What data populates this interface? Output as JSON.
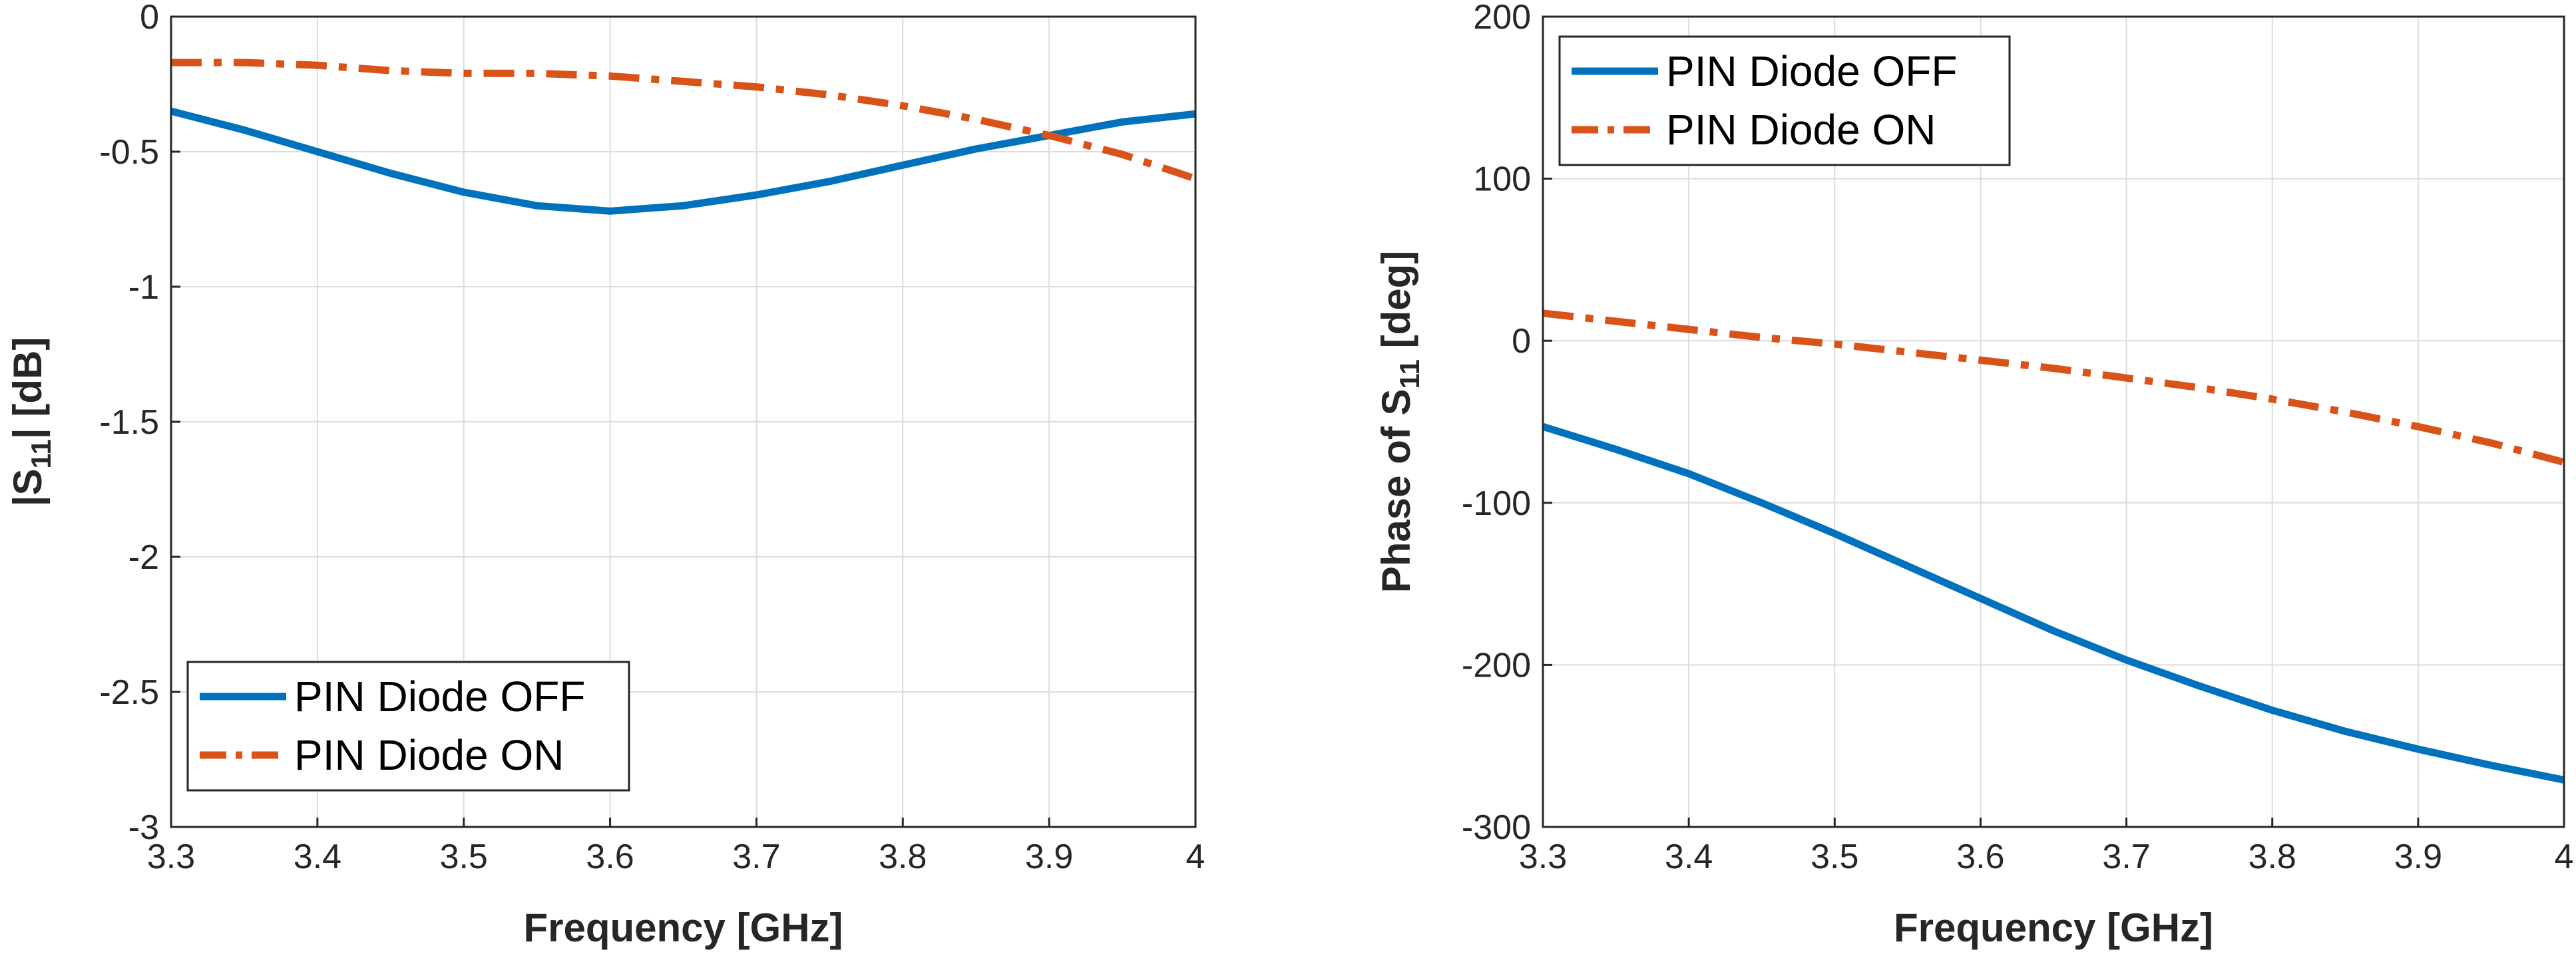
{
  "colors": {
    "off": "#0072BD",
    "on": "#D95319",
    "axis": "#262626",
    "grid": "#dcdcdc"
  },
  "chart_data": [
    {
      "type": "line",
      "xlabel": "Frequency [GHz]",
      "ylabel_main": "|S",
      "ylabel_sub": "11",
      "ylabel_tail": "| [dB]",
      "xlim": [
        3.3,
        4.0
      ],
      "ylim": [
        -3,
        0
      ],
      "xticks": [
        "3.3",
        "3.4",
        "3.5",
        "3.6",
        "3.7",
        "3.8",
        "3.9",
        "4"
      ],
      "yticks": [
        "0",
        "-0.5",
        "-1",
        "-1.5",
        "-2",
        "-2.5",
        "-3"
      ],
      "grid": true,
      "legend_position": "bottom-left",
      "series": [
        {
          "name": "PIN Diode OFF",
          "style": "solid",
          "x": [
            3.3,
            3.35,
            3.4,
            3.45,
            3.5,
            3.55,
            3.6,
            3.65,
            3.7,
            3.75,
            3.8,
            3.85,
            3.9,
            3.95,
            4.0
          ],
          "y": [
            -0.35,
            -0.42,
            -0.5,
            -0.58,
            -0.65,
            -0.7,
            -0.72,
            -0.7,
            -0.66,
            -0.61,
            -0.55,
            -0.49,
            -0.44,
            -0.39,
            -0.36
          ]
        },
        {
          "name": "PIN Diode ON",
          "style": "dashdot",
          "x": [
            3.3,
            3.35,
            3.4,
            3.45,
            3.5,
            3.55,
            3.6,
            3.65,
            3.7,
            3.75,
            3.8,
            3.85,
            3.9,
            3.95,
            4.0
          ],
          "y": [
            -0.17,
            -0.17,
            -0.18,
            -0.2,
            -0.21,
            -0.21,
            -0.22,
            -0.24,
            -0.26,
            -0.29,
            -0.33,
            -0.38,
            -0.44,
            -0.51,
            -0.6
          ]
        }
      ]
    },
    {
      "type": "line",
      "xlabel": "Frequency [GHz]",
      "ylabel_main": "Phase of S",
      "ylabel_sub": "11",
      "ylabel_tail": " [deg]",
      "xlim": [
        3.3,
        4.0
      ],
      "ylim": [
        -300,
        200
      ],
      "xticks": [
        "3.3",
        "3.4",
        "3.5",
        "3.6",
        "3.7",
        "3.8",
        "3.9",
        "4"
      ],
      "yticks": [
        "200",
        "100",
        "0",
        "-100",
        "-200",
        "-300"
      ],
      "grid": true,
      "legend_position": "top-left",
      "series": [
        {
          "name": "PIN Diode OFF",
          "style": "solid",
          "x": [
            3.3,
            3.35,
            3.4,
            3.45,
            3.5,
            3.55,
            3.6,
            3.65,
            3.7,
            3.75,
            3.8,
            3.85,
            3.9,
            3.95,
            4.0
          ],
          "y": [
            -53,
            -67,
            -82,
            -100,
            -119,
            -139,
            -159,
            -179,
            -197,
            -213,
            -228,
            -241,
            -252,
            -262,
            -271
          ]
        },
        {
          "name": "PIN Diode ON",
          "style": "dashdot",
          "x": [
            3.3,
            3.35,
            3.4,
            3.45,
            3.5,
            3.55,
            3.6,
            3.65,
            3.7,
            3.75,
            3.8,
            3.85,
            3.9,
            3.95,
            4.0
          ],
          "y": [
            17,
            12,
            7,
            2,
            -2,
            -7,
            -12,
            -17,
            -23,
            -29,
            -36,
            -44,
            -53,
            -63,
            -75
          ]
        }
      ]
    }
  ]
}
